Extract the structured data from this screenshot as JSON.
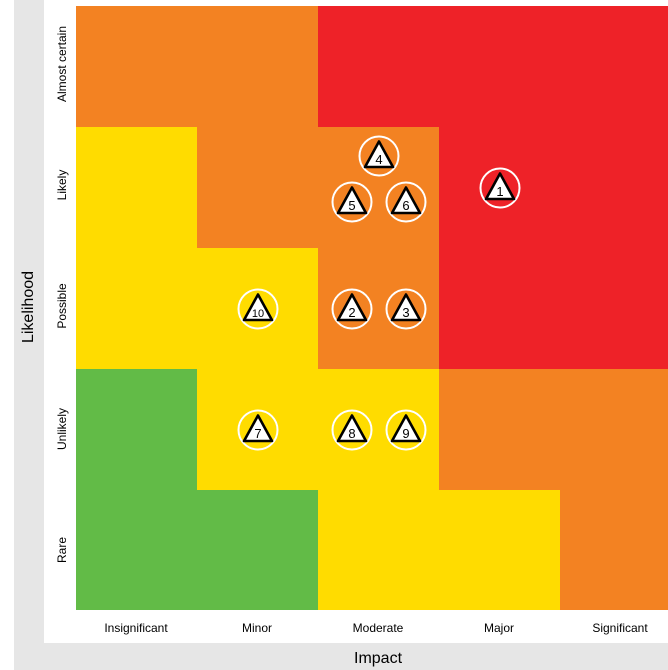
{
  "axis": {
    "y_title": "Likelihood",
    "x_title": "Impact"
  },
  "rows": [
    "Almost certain",
    "Likely",
    "Possible",
    "Unlikely",
    "Rare"
  ],
  "columns": [
    "Insignificant",
    "Minor",
    "Moderate",
    "Major",
    "Significant"
  ],
  "colors": {
    "red": "#ee2228",
    "orange": "#f38222",
    "yellow": "#ffdc00",
    "green": "#62bb47",
    "frame": "#e6e6e6"
  },
  "matrix": [
    [
      "orange",
      "orange",
      "red",
      "red",
      "red"
    ],
    [
      "yellow",
      "orange",
      "orange",
      "red",
      "red"
    ],
    [
      "yellow",
      "yellow",
      "orange",
      "red",
      "red"
    ],
    [
      "green",
      "yellow",
      "yellow",
      "orange",
      "orange"
    ],
    [
      "green",
      "green",
      "yellow",
      "yellow",
      "orange"
    ]
  ],
  "markers": [
    {
      "label": "1",
      "icon": "warning-triangle-icon",
      "row": "Likely",
      "column": "Major",
      "slot": "center"
    },
    {
      "label": "2",
      "icon": "warning-triangle-icon",
      "row": "Possible",
      "column": "Moderate",
      "slot": "left"
    },
    {
      "label": "3",
      "icon": "warning-triangle-icon",
      "row": "Possible",
      "column": "Moderate",
      "slot": "right"
    },
    {
      "label": "4",
      "icon": "warning-triangle-icon",
      "row": "Likely",
      "column": "Moderate",
      "slot": "top"
    },
    {
      "label": "5",
      "icon": "warning-triangle-icon",
      "row": "Likely",
      "column": "Moderate",
      "slot": "left"
    },
    {
      "label": "6",
      "icon": "warning-triangle-icon",
      "row": "Likely",
      "column": "Moderate",
      "slot": "right"
    },
    {
      "label": "7",
      "icon": "warning-triangle-icon",
      "row": "Unlikely",
      "column": "Minor",
      "slot": "center"
    },
    {
      "label": "8",
      "icon": "warning-triangle-icon",
      "row": "Unlikely",
      "column": "Moderate",
      "slot": "left"
    },
    {
      "label": "9",
      "icon": "warning-triangle-icon",
      "row": "Unlikely",
      "column": "Moderate",
      "slot": "right"
    },
    {
      "label": "10",
      "icon": "warning-triangle-icon",
      "row": "Possible",
      "column": "Minor",
      "slot": "center"
    }
  ]
}
